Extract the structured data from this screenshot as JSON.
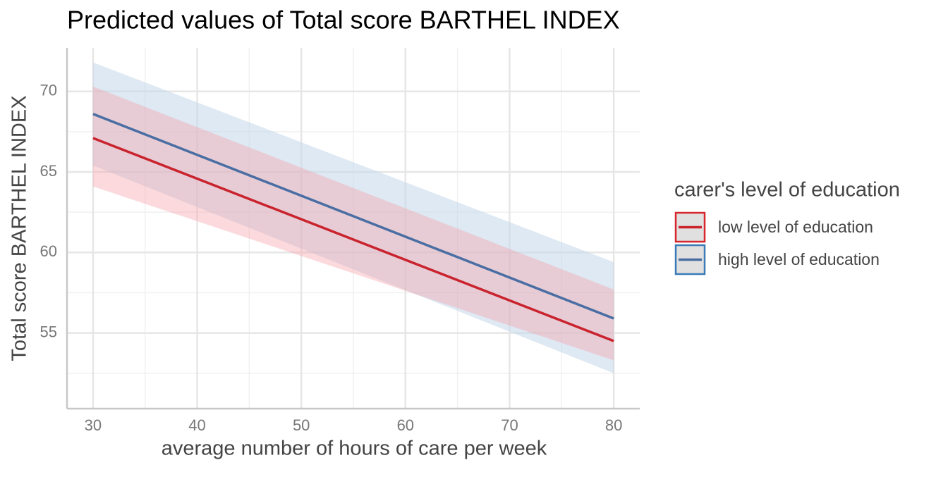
{
  "chart_data": {
    "type": "line",
    "title": "Predicted values of Total score BARTHEL INDEX",
    "x_label": "average number of hours of care per week",
    "y_label": "Total score BARTHEL INDEX",
    "legend_title": "carer's level of education",
    "legend": "right",
    "grid": true,
    "x": [
      30,
      80
    ],
    "xlim": [
      27.5,
      82.5
    ],
    "xticks": [
      30,
      40,
      50,
      60,
      70,
      80
    ],
    "xminor": [
      35,
      45,
      55,
      65,
      75
    ],
    "ylim": [
      50.3,
      72.7
    ],
    "yticks": [
      55,
      60,
      65,
      70
    ],
    "yminor": [
      52.5,
      57.5,
      62.5,
      67.5
    ],
    "series": [
      {
        "name": "low level of education",
        "color": "#c9232e",
        "band_color": "#f4a1a8",
        "legend_color": "#d7262c",
        "values": [
          67.1,
          54.5
        ],
        "lower": [
          64.1,
          53.3
        ],
        "upper": [
          70.3,
          57.7
        ]
      },
      {
        "name": "high level of education",
        "color": "#4a6ea3",
        "band_color": "#c3d7ea",
        "legend_color": "#3b7bb5",
        "values": [
          68.6,
          55.9
        ],
        "lower": [
          65.4,
          52.5
        ],
        "upper": [
          71.8,
          59.4
        ]
      }
    ]
  }
}
